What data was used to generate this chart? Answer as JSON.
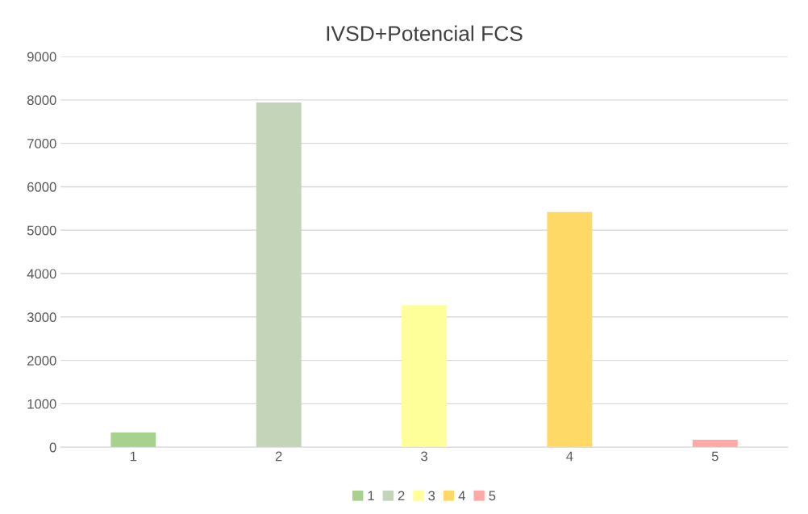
{
  "chart_data": {
    "type": "bar",
    "title": "IVSD+Potencial FCS",
    "categories": [
      "1",
      "2",
      "3",
      "4",
      "5"
    ],
    "series": [
      {
        "name": "1",
        "color": "#a9d18e",
        "values": [
          340,
          null,
          null,
          null,
          null
        ]
      },
      {
        "name": "2",
        "color": "#c3d4b8",
        "values": [
          null,
          7940,
          null,
          null,
          null
        ]
      },
      {
        "name": "3",
        "color": "#ffff99",
        "values": [
          null,
          null,
          3270,
          null,
          null
        ]
      },
      {
        "name": "4",
        "color": "#ffd966",
        "values": [
          null,
          null,
          null,
          5420,
          null
        ]
      },
      {
        "name": "5",
        "color": "#ffa8a8",
        "values": [
          null,
          null,
          null,
          null,
          170
        ]
      }
    ],
    "ylim": [
      0,
      9000
    ],
    "yticks": [
      0,
      1000,
      2000,
      3000,
      4000,
      5000,
      6000,
      7000,
      8000,
      9000
    ],
    "grid": "y",
    "legend": "bottom"
  }
}
